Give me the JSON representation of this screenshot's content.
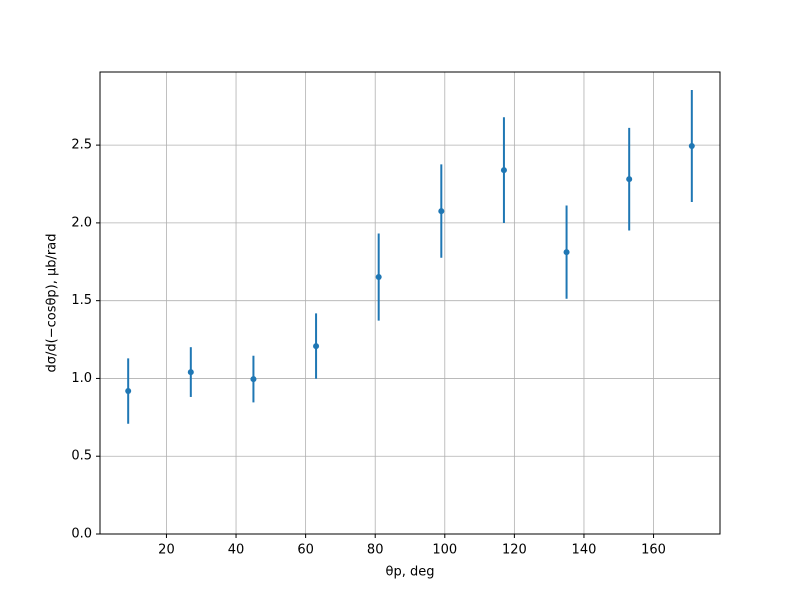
{
  "chart_data": {
    "type": "errorbar",
    "x_label": "θp, deg",
    "y_label": "dσ/d(−cosθp), μb/rad",
    "x": [
      9,
      27,
      45,
      63,
      81,
      99,
      117,
      135,
      153,
      171
    ],
    "values": [
      0.919,
      1.041,
      0.996,
      1.208,
      1.652,
      2.076,
      2.339,
      1.812,
      2.281,
      2.494
    ],
    "errors": [
      0.21,
      0.16,
      0.15,
      0.21,
      0.28,
      0.3,
      0.34,
      0.3,
      0.33,
      0.36
    ],
    "color": "#1f77b4",
    "xlim": [
      0.9,
      179.1
    ],
    "ylim": [
      0,
      2.97
    ],
    "xticks": [
      20,
      40,
      60,
      80,
      100,
      120,
      140,
      160
    ],
    "yticks": [
      {
        "value": 0,
        "label": "0.0"
      },
      {
        "value": 0.5,
        "label": "0.5"
      },
      {
        "value": 1,
        "label": "1.0"
      },
      {
        "value": 1.5,
        "label": "1.5"
      },
      {
        "value": 2,
        "label": "2.0"
      },
      {
        "value": 2.5,
        "label": "2.5"
      }
    ],
    "grid": true
  }
}
